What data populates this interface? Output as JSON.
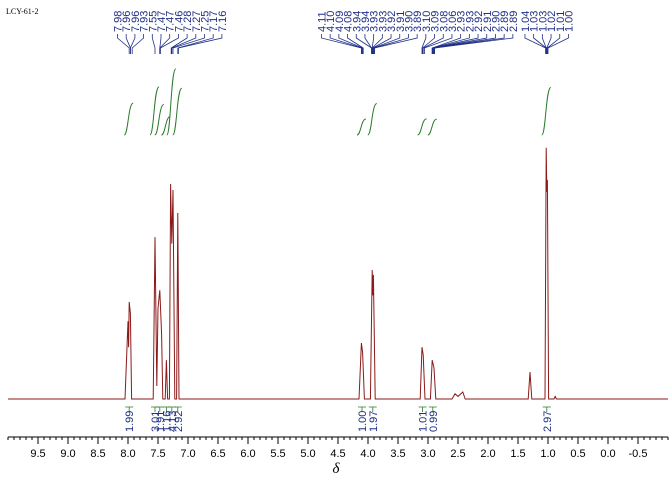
{
  "chart_data": {
    "type": "line",
    "title": "LCY-61-2",
    "xlabel": "δ",
    "xlim": [
      10.0,
      -1.0
    ],
    "ylim": [
      0,
      100
    ],
    "xticks": [
      9.5,
      {
        "value": 9,
        "label": "9.0"
      },
      8.5,
      {
        "value": 8,
        "label": "8.0"
      },
      7.5,
      {
        "value": 7,
        "label": "7.0"
      },
      6.5,
      {
        "value": 6,
        "label": "6.0"
      },
      5.5,
      {
        "value": 5,
        "label": "5.0"
      },
      4.5,
      {
        "value": 4,
        "label": "4.0"
      },
      3.5,
      {
        "value": 3,
        "label": "3.0"
      },
      2.5,
      {
        "value": 2,
        "label": "2.0"
      },
      1.5,
      {
        "value": 1,
        "label": "1.0"
      },
      0.5,
      {
        "value": 0,
        "label": "0.0"
      },
      -0.5
    ],
    "series": [
      {
        "color": "#8b1a1a",
        "x": [
          10.0,
          8.05,
          8.0,
          7.99,
          7.98,
          7.96,
          7.94,
          7.58,
          7.55,
          7.52,
          7.5,
          7.47,
          7.44,
          7.42,
          7.38,
          7.36,
          7.34,
          7.31,
          7.29,
          7.27,
          7.25,
          7.22,
          7.19,
          7.17,
          7.15,
          4.15,
          4.11,
          4.09,
          4.06,
          3.96,
          3.93,
          3.92,
          3.91,
          3.88,
          3.13,
          3.1,
          3.08,
          3.05,
          2.96,
          2.93,
          2.9,
          2.87,
          2.6,
          2.55,
          2.5,
          2.42,
          2.38,
          1.33,
          1.3,
          1.27,
          1.05,
          1.03,
          1.02,
          1.01,
          0.99,
          0.9,
          0.88,
          0.86,
          -1.0
        ],
        "values": [
          0,
          0,
          30,
          20,
          37.5,
          33,
          0,
          0,
          62.5,
          5,
          35,
          42,
          25,
          0,
          0,
          15,
          0,
          0,
          83,
          60,
          80.7,
          0,
          0,
          71.8,
          0,
          0,
          21.6,
          18,
          0,
          0,
          49.8,
          40,
          47.9,
          0,
          0,
          20,
          17,
          0,
          0,
          15,
          12,
          0,
          0,
          2,
          1,
          2.7,
          0,
          0,
          10.4,
          0,
          0,
          97,
          80,
          84.6,
          0,
          0,
          1,
          0,
          0
        ]
      }
    ],
    "peak_labels": [
      7.98,
      7.96,
      7.96,
      7.93,
      7.55,
      7.47,
      7.47,
      7.46,
      7.28,
      7.27,
      7.25,
      7.17,
      7.16,
      4.11,
      4.1,
      4.09,
      4.08,
      3.94,
      3.94,
      3.93,
      3.93,
      3.92,
      3.91,
      3.9,
      3.89,
      3.1,
      3.09,
      3.08,
      3.06,
      2.93,
      2.93,
      2.92,
      2.91,
      2.9,
      2.89,
      2.89,
      1.04,
      1.03,
      1.03,
      1.02,
      1.01,
      1.0
    ],
    "integrals": [
      {
        "x": 7.98,
        "value": 1.99
      },
      {
        "x": 7.55,
        "value": 3.01
      },
      {
        "x": 7.47,
        "value": 1.91
      },
      {
        "x": 7.36,
        "value": 1.16
      },
      {
        "x": 7.27,
        "value": 4.13
      },
      {
        "x": 7.17,
        "value": 2.92
      },
      {
        "x": 4.1,
        "value": 1.0
      },
      {
        "x": 3.92,
        "value": 1.97
      },
      {
        "x": 3.09,
        "value": 1.01
      },
      {
        "x": 2.92,
        "value": 0.99
      },
      {
        "x": 1.02,
        "value": 2.97
      }
    ],
    "label_color": "#1f2f86",
    "integral_color": "#2a7a2a"
  }
}
